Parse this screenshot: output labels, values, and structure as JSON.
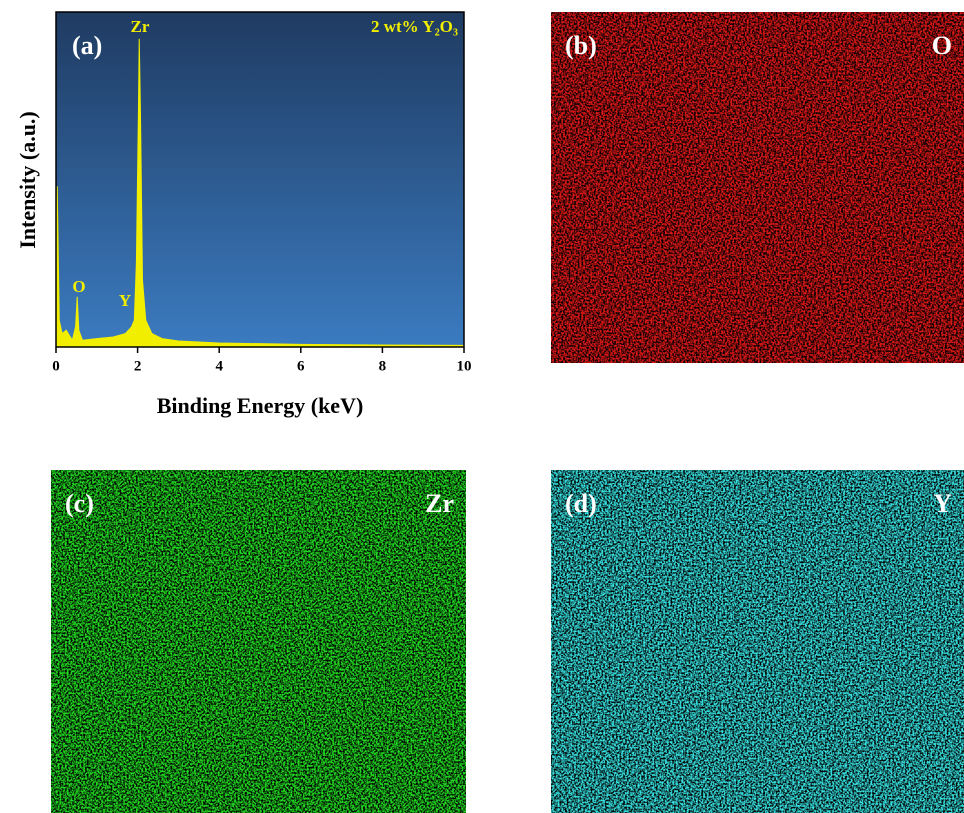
{
  "chart_data": {
    "type": "area",
    "xlabel": "Binding Energy (keV)",
    "ylabel": "Intensity (a.u.)",
    "annotations": [
      "(a)",
      "Zr",
      "2 wt% Y₂O₃",
      "O",
      "Y"
    ],
    "x": [
      0,
      0.03,
      0.08,
      0.15,
      0.25,
      0.4,
      0.48,
      0.52,
      0.56,
      0.65,
      1.0,
      1.4,
      1.7,
      1.85,
      1.92,
      1.97,
      2.02,
      2.04,
      2.07,
      2.12,
      2.2,
      2.35,
      2.6,
      3.0,
      4.0,
      6.0,
      8.0,
      10.0
    ],
    "values": [
      2,
      48,
      8,
      4,
      5,
      2,
      6,
      15,
      5,
      2,
      2.5,
      3,
      4,
      6,
      8,
      25,
      70,
      92,
      70,
      20,
      8,
      4,
      2.5,
      1.8,
      1.2,
      0.8,
      0.6,
      0.5
    ],
    "color": "#f2ee00",
    "xlim": [
      0,
      10
    ],
    "xticks": [
      0,
      2,
      4,
      6,
      8,
      10
    ],
    "ylim": [
      0,
      100
    ]
  },
  "maps": [
    {
      "panel_label": "(b)",
      "element": "O",
      "color": "#e01818"
    },
    {
      "panel_label": "(c)",
      "element": "Zr",
      "color": "#22dd22"
    },
    {
      "panel_label": "(d)",
      "element": "Y",
      "color": "#38e2e2"
    }
  ]
}
